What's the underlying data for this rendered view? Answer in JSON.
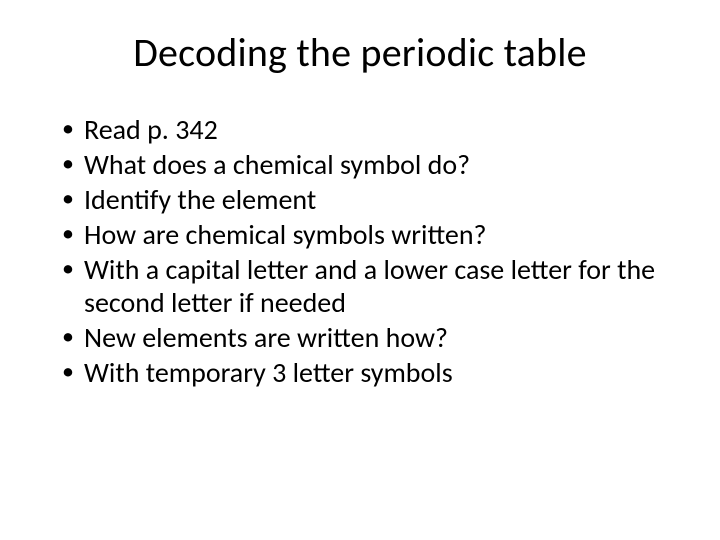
{
  "slide": {
    "title": "Decoding the periodic table",
    "bullets": [
      "Read p. 342",
      "What does a chemical symbol do?",
      "Identify the element",
      "How are chemical symbols written?",
      "With a capital letter and a lower case letter for the second letter if needed",
      "New elements are written how?",
      "With temporary 3 letter symbols"
    ],
    "colors": {
      "background": "#ffffff",
      "text": "#000000"
    },
    "typography": {
      "title_fontsize": 40,
      "body_fontsize": 28,
      "font_family": "Calibri"
    }
  }
}
